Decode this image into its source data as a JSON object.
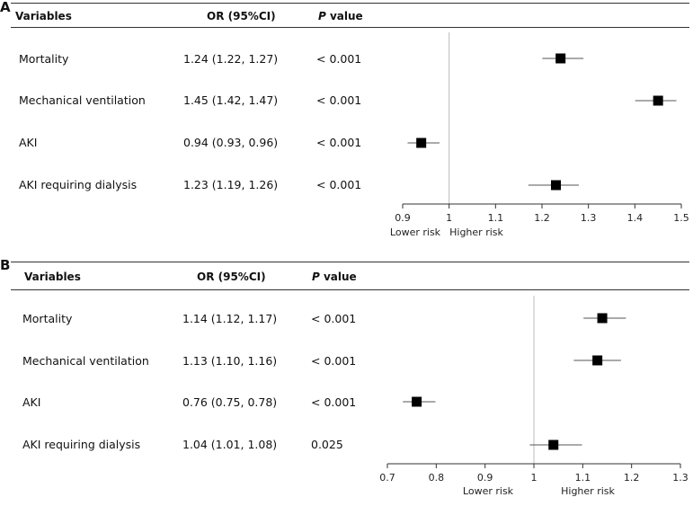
{
  "panels": [
    {
      "label": "A",
      "headers": {
        "variables": "Variables",
        "or": "OR (95%CI)",
        "p_italic": "P",
        "p_rest": " value"
      },
      "rows": [
        {
          "variable": "Mortality",
          "or_text": "1.24 (1.22, 1.27)",
          "p": "< 0.001"
        },
        {
          "variable": "Mechanical ventilation",
          "or_text": "1.45 (1.42, 1.47)",
          "p": "< 0.001"
        },
        {
          "variable": "AKI",
          "or_text": "0.94 (0.93, 0.96)",
          "p": "< 0.001"
        },
        {
          "variable": "AKI requiring dialysis",
          "or_text": "1.23 (1.19, 1.26)",
          "p": "< 0.001"
        }
      ],
      "axis_labels": {
        "lower": "Lower risk",
        "higher": "Higher risk"
      }
    },
    {
      "label": "B",
      "headers": {
        "variables": "Variables",
        "or": "OR (95%CI)",
        "p_italic": "P",
        "p_rest": " value"
      },
      "rows": [
        {
          "variable": "Mortality",
          "or_text": "1.14 (1.12, 1.17)",
          "p": "< 0.001"
        },
        {
          "variable": "Mechanical ventilation",
          "or_text": "1.13 (1.10, 1.16)",
          "p": "< 0.001"
        },
        {
          "variable": "AKI",
          "or_text": "0.76 (0.75, 0.78)",
          "p": "< 0.001"
        },
        {
          "variable": "AKI requiring dialysis",
          "or_text": "1.04 (1.01, 1.08)",
          "p": "0.025"
        }
      ],
      "axis_labels": {
        "lower": "Lower risk",
        "higher": "Higher risk"
      }
    }
  ],
  "chart_data": [
    {
      "type": "forest",
      "panel": "A",
      "categories": [
        "Mortality",
        "Mechanical ventilation",
        "AKI",
        "AKI requiring dialysis"
      ],
      "or": [
        1.24,
        1.45,
        0.94,
        1.23
      ],
      "ci_low": [
        1.22,
        1.42,
        0.93,
        1.19
      ],
      "ci_high": [
        1.27,
        1.47,
        0.96,
        1.26
      ],
      "xlim": [
        0.9,
        1.5
      ],
      "ticks": [
        0.9,
        1,
        1.1,
        1.2,
        1.3,
        1.4,
        1.5
      ],
      "tick_labels": [
        "0.9",
        "1",
        "1.1",
        "1.2",
        "1.3",
        "1.4",
        "1.5"
      ],
      "reference": 1,
      "xlabel_left": "Lower risk",
      "xlabel_right": "Higher risk"
    },
    {
      "type": "forest",
      "panel": "B",
      "categories": [
        "Mortality",
        "Mechanical ventilation",
        "AKI",
        "AKI requiring dialysis"
      ],
      "or": [
        1.14,
        1.13,
        0.76,
        1.04
      ],
      "ci_low": [
        1.12,
        1.1,
        0.75,
        1.01
      ],
      "ci_high": [
        1.17,
        1.16,
        0.78,
        1.08
      ],
      "xlim": [
        0.7,
        1.3
      ],
      "ticks": [
        0.7,
        0.8,
        0.9,
        1,
        1.1,
        1.2,
        1.3
      ],
      "tick_labels": [
        "0.7",
        "0.8",
        "0.9",
        "1",
        "1.1",
        "1.2",
        "1.3"
      ],
      "reference": 1,
      "xlabel_left": "Lower risk",
      "xlabel_right": "Higher risk"
    }
  ],
  "colors": {
    "marker": "#000000",
    "whisker": "#555555",
    "reference": "#bbbbbb",
    "axis": "#333333"
  }
}
